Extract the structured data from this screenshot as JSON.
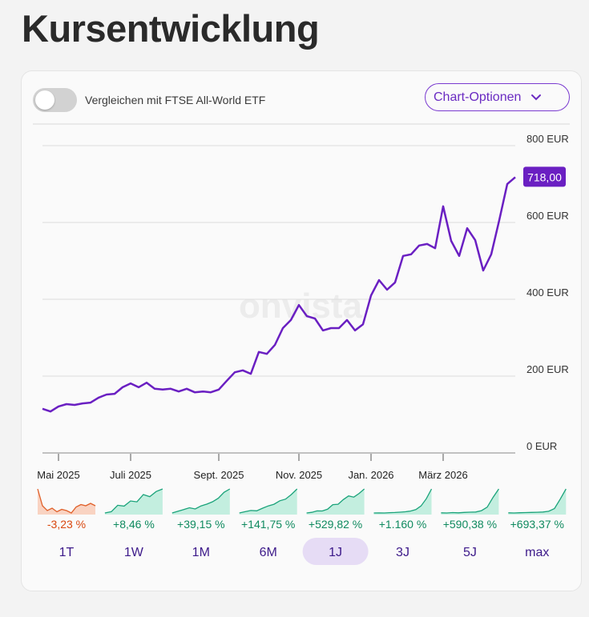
{
  "header": {
    "title": "Kursentwicklung"
  },
  "toolbar": {
    "compare_label": "Vergleichen mit FTSE All-World ETF",
    "compare_on": false,
    "options_button": "Chart-Optionen"
  },
  "watermark": "onvista",
  "chart_data": {
    "type": "line",
    "color": "#6a1fc2",
    "grid": true,
    "ylim": [
      0,
      800
    ],
    "yticks": [
      {
        "value": 0,
        "label": "0 EUR"
      },
      {
        "value": 200,
        "label": "200 EUR"
      },
      {
        "value": 400,
        "label": "400 EUR"
      },
      {
        "value": 600,
        "label": "600 EUR"
      },
      {
        "value": 800,
        "label": "800 EUR"
      }
    ],
    "categories": [
      null,
      null,
      "Mai 2025",
      null,
      null,
      null,
      null,
      null,
      null,
      null,
      null,
      "Juli 2025",
      null,
      null,
      null,
      null,
      null,
      null,
      null,
      null,
      null,
      null,
      "Sept. 2025",
      null,
      null,
      null,
      null,
      null,
      null,
      null,
      null,
      null,
      "Nov. 2025",
      null,
      null,
      null,
      null,
      null,
      null,
      null,
      null,
      "Jan. 2026",
      null,
      null,
      null,
      null,
      null,
      null,
      null,
      null,
      "März 2026",
      null,
      null,
      null,
      null,
      null,
      null,
      null,
      null,
      null
    ],
    "values": [
      115,
      108,
      121,
      127,
      125,
      129,
      131,
      144,
      152,
      154,
      171,
      181,
      171,
      183,
      167,
      165,
      167,
      160,
      167,
      158,
      160,
      158,
      165,
      188,
      210,
      215,
      206,
      263,
      258,
      281,
      325,
      346,
      385,
      356,
      350,
      319,
      325,
      325,
      346,
      319,
      335,
      410,
      450,
      425,
      444,
      513,
      517,
      540,
      544,
      533,
      642,
      552,
      513,
      585,
      554,
      475,
      517,
      606,
      700,
      718
    ],
    "value_labels": [
      null,
      null,
      null,
      null,
      null,
      null,
      null,
      null,
      null,
      null,
      null,
      null,
      null,
      null,
      null,
      null,
      null,
      null,
      null,
      null,
      null,
      null,
      null,
      null,
      null,
      null,
      null,
      null,
      null,
      null,
      null,
      null,
      null,
      null,
      null,
      null,
      null,
      null,
      null,
      null,
      null,
      null,
      null,
      null,
      null,
      null,
      null,
      null,
      null,
      null,
      null,
      null,
      null,
      null,
      null,
      null,
      null,
      null,
      null,
      "718,00"
    ]
  },
  "periods": [
    {
      "label": "1T",
      "change": -3.23,
      "change_label": "-3,23 %",
      "color": "#e0602a",
      "fill": "#f9d3c2",
      "selected": false,
      "values": [
        742,
        728,
        724,
        726,
        723,
        725,
        724,
        722,
        727,
        729,
        728,
        730,
        728
      ]
    },
    {
      "label": "1W",
      "change": 8.46,
      "change_label": "+8,46 %",
      "color": "#1aa37a",
      "fill": "#c3eedf",
      "selected": false,
      "values": [
        662,
        665,
        680,
        678,
        690,
        688,
        705,
        700,
        712,
        718
      ]
    },
    {
      "label": "1M",
      "change": 39.15,
      "change_label": "+39,15 %",
      "color": "#1aa37a",
      "fill": "#c3eedf",
      "selected": false,
      "values": [
        516,
        530,
        545,
        560,
        550,
        575,
        590,
        610,
        640,
        690,
        718
      ]
    },
    {
      "label": "6M",
      "change": 141.75,
      "change_label": "+141,75 %",
      "color": "#1aa37a",
      "fill": "#c3eedf",
      "selected": false,
      "values": [
        297,
        320,
        340,
        335,
        380,
        420,
        450,
        510,
        540,
        620,
        718
      ]
    },
    {
      "label": "1J",
      "change": 529.82,
      "change_label": "+529,82 %",
      "color": "#1aa37a",
      "fill": "#c3eedf",
      "selected": true,
      "values": [
        115,
        131,
        167,
        165,
        210,
        325,
        335,
        450,
        544,
        513,
        606,
        718
      ]
    },
    {
      "label": "3J",
      "change": 1160,
      "change_label": "+1.160 %",
      "color": "#1aa37a",
      "fill": "#c3eedf",
      "selected": false,
      "values": [
        57,
        60,
        58,
        65,
        70,
        80,
        90,
        110,
        150,
        250,
        450,
        718
      ]
    },
    {
      "label": "5J",
      "change": 590.38,
      "change_label": "+590,38 %",
      "color": "#1aa37a",
      "fill": "#c3eedf",
      "selected": false,
      "values": [
        104,
        100,
        110,
        105,
        115,
        120,
        125,
        160,
        250,
        500,
        718
      ]
    },
    {
      "label": "max",
      "change": 693.37,
      "change_label": "+693,37 %",
      "color": "#1aa37a",
      "fill": "#c3eedf",
      "selected": false,
      "values": [
        90,
        85,
        92,
        95,
        100,
        105,
        110,
        130,
        200,
        450,
        718
      ]
    }
  ]
}
